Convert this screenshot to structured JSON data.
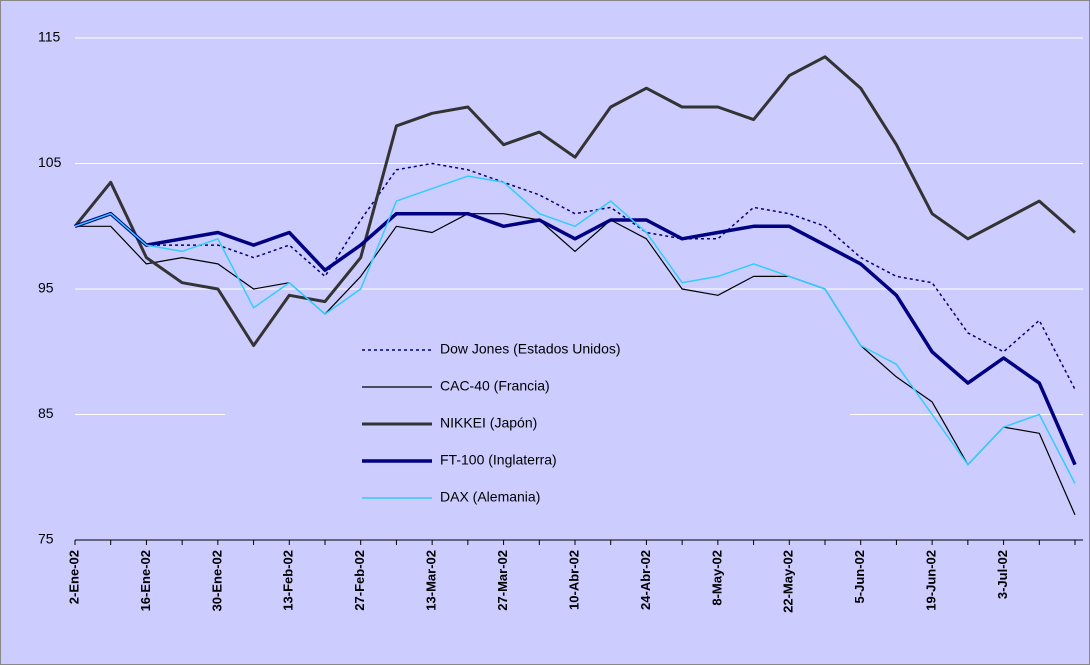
{
  "chart_data": {
    "type": "line",
    "categories": [
      "2-Ene-02",
      null,
      "16-Ene-02",
      null,
      "30-Ene-02",
      null,
      "13-Feb-02",
      null,
      "27-Feb-02",
      null,
      "13-Mar-02",
      null,
      "27-Mar-02",
      null,
      "10-Abr-02",
      null,
      "24-Abr-02",
      null,
      "8-May-02",
      null,
      "22-May-02",
      null,
      "5-Jun-02",
      null,
      "19-Jun-02",
      null,
      "3-Jul-02",
      null,
      null
    ],
    "series": [
      {
        "name": "Dow Jones (Estados Unidos)",
        "color": "#000080",
        "width": 1.5,
        "dash": "3,3",
        "values": [
          100,
          101,
          98.5,
          98.5,
          98.5,
          97.5,
          98.5,
          96,
          100.5,
          104.5,
          105,
          104.5,
          103.5,
          102.5,
          101,
          101.5,
          99.5,
          99,
          99,
          101.5,
          101,
          100,
          97.5,
          96,
          95.5,
          91.5,
          90,
          92.5,
          87
        ]
      },
      {
        "name": "CAC-40 (Francia)",
        "color": "#000000",
        "width": 1.2,
        "dash": "none",
        "values": [
          100,
          100,
          97,
          97.5,
          97,
          95,
          95.5,
          93,
          96,
          100,
          99.5,
          101,
          101,
          100.5,
          98,
          100.5,
          99,
          95,
          94.5,
          96,
          96,
          95,
          90.5,
          88,
          86,
          81,
          84,
          83.5,
          77
        ]
      },
      {
        "name": "NIKKEI (Japón)",
        "color": "#333333",
        "width": 3,
        "dash": "none",
        "values": [
          100,
          103.5,
          97.5,
          95.5,
          95,
          90.5,
          94.5,
          94,
          97.5,
          108,
          109,
          109.5,
          106.5,
          107.5,
          105.5,
          109.5,
          111,
          109.5,
          109.5,
          108.5,
          112,
          113.5,
          111,
          106.5,
          101,
          99,
          100.5,
          102,
          99.5
        ]
      },
      {
        "name": "FT-100 (Inglaterra)",
        "color": "#000080",
        "width": 3.5,
        "dash": "none",
        "values": [
          100,
          101,
          98.5,
          99,
          99.5,
          98.5,
          99.5,
          96.5,
          98.5,
          101,
          101,
          101,
          100,
          100.5,
          99,
          100.5,
          100.5,
          99,
          99.5,
          100,
          100,
          98.5,
          97,
          94.5,
          90,
          87.5,
          89.5,
          87.5,
          81
        ]
      },
      {
        "name": "DAX (Alemania)",
        "color": "#33ccff",
        "width": 1.5,
        "dash": "none",
        "values": [
          100,
          101,
          98.5,
          98,
          99,
          93.5,
          95.5,
          93,
          95,
          102,
          103,
          104,
          103.5,
          101,
          100,
          102,
          99.5,
          95.5,
          96,
          97,
          96,
          95,
          90.5,
          89,
          85,
          81,
          84,
          85,
          79.5
        ]
      }
    ],
    "ylim": [
      75,
      115
    ],
    "yticks": [
      75,
      85,
      95,
      105,
      115
    ],
    "grid": true,
    "background": "#ccccff"
  }
}
